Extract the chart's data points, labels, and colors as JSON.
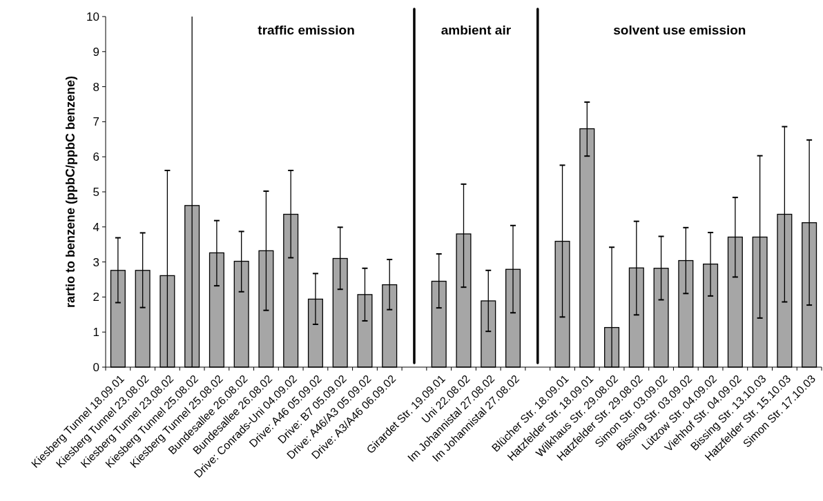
{
  "chart_data": {
    "type": "bar",
    "ylabel": "rartio to benzene (ppbC/ppbC benzene)",
    "categories": [
      "Kiesberg Tunnel 18.09.01",
      "Kiesberg Tunnel 23.08.02",
      "Kiesberg Tunnel 23.08.02",
      "Kiesberg Tunnel 25.08.02",
      "Kiesberg Tunnel 25.08.02",
      "Bundesallee 26.08.02",
      "Bundesallee 26.08.02",
      "Drive: Conrads-Uni 04.09.02",
      "Drive: A46 05.09.02",
      "Drive: B7 05.09.02",
      "Drive: A46/A3 05.09.02",
      "Drive: A3/A46 06.09.02",
      null,
      "Girardet Str. 19.09.01",
      "Uni 22.08.02",
      "Im Johannistal 27.08.02",
      "Im Johannistal 27.08.02",
      null,
      "Blücher Str. 18.09.01",
      "Hatzfelder Str. 18.09.01",
      "Wilkhaus Str. 29.08.02",
      "Hatzfelder Str. 29.08.02",
      "Simon Str. 03.09.02",
      "Bissing Str. 03.09.02",
      "Lützow Str. 04.09.02",
      "Viehhof Str. 04.09.02",
      "Bissing Str. 13.10.03",
      "Hatzfelder Str. 15.10.03",
      "Simon Str. 17.10.03"
    ],
    "values": [
      2.76,
      2.76,
      2.61,
      4.61,
      3.26,
      3.02,
      3.32,
      4.36,
      1.94,
      3.1,
      2.07,
      2.35,
      null,
      2.45,
      3.8,
      1.89,
      2.79,
      null,
      3.59,
      6.8,
      1.13,
      2.83,
      2.82,
      3.04,
      2.94,
      3.71,
      3.71,
      4.36,
      4.12
    ],
    "errors": [
      [
        1.84,
        3.69
      ],
      [
        1.7,
        3.83
      ],
      [
        0,
        5.61
      ],
      [
        0,
        10
      ],
      [
        2.32,
        4.18
      ],
      [
        2.15,
        3.87
      ],
      [
        1.62,
        5.02
      ],
      [
        3.12,
        5.61
      ],
      [
        1.22,
        2.67
      ],
      [
        2.22,
        3.99
      ],
      [
        1.32,
        2.82
      ],
      [
        1.64,
        3.07
      ],
      null,
      [
        1.69,
        3.23
      ],
      [
        2.28,
        5.22
      ],
      [
        1.02,
        2.76
      ],
      [
        1.55,
        4.04
      ],
      null,
      [
        1.43,
        5.76
      ],
      [
        6.02,
        7.56
      ],
      [
        0,
        3.42
      ],
      [
        1.49,
        4.16
      ],
      [
        1.92,
        3.73
      ],
      [
        2.1,
        3.98
      ],
      [
        2.03,
        3.84
      ],
      [
        2.57,
        4.84
      ],
      [
        1.4,
        6.03
      ],
      [
        1.86,
        6.86
      ],
      [
        1.77,
        6.48
      ]
    ],
    "color": "#a6a6a6",
    "ylim": [
      0,
      10
    ],
    "yticks": [
      0,
      1,
      2,
      3,
      4,
      5,
      6,
      7,
      8,
      9,
      10
    ],
    "annotations": [
      "traffic emission",
      "ambient air",
      "solvent use emission"
    ]
  }
}
